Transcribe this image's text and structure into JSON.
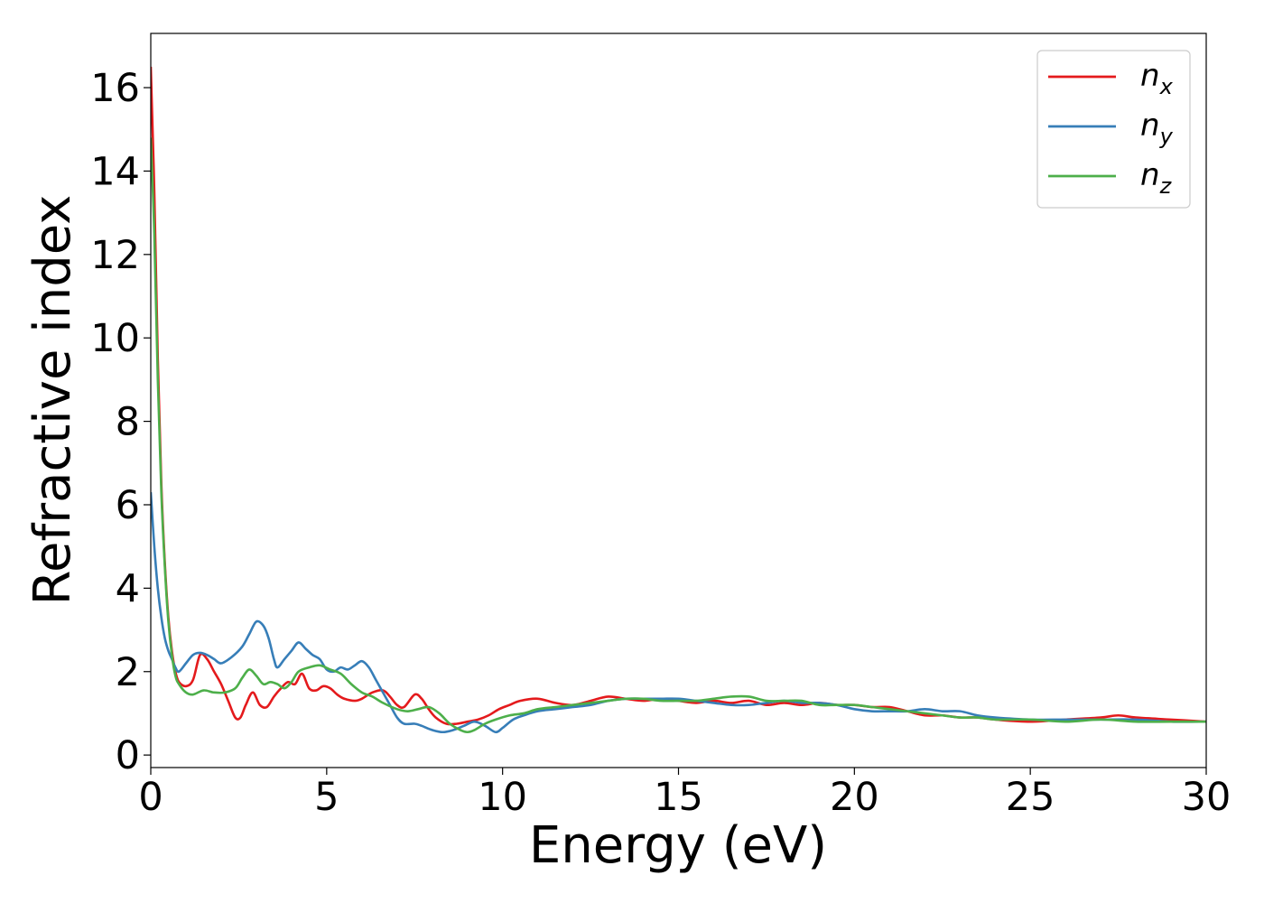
{
  "chart_data": {
    "type": "line",
    "title": "",
    "xlabel": "Energy (eV)",
    "ylabel": "Refractive index",
    "xlim": [
      0,
      30
    ],
    "ylim": [
      -0.3,
      17.3
    ],
    "xticks": [
      0,
      5,
      10,
      15,
      20,
      25,
      30
    ],
    "yticks": [
      0,
      2,
      4,
      6,
      8,
      10,
      12,
      14,
      16
    ],
    "grid": false,
    "legend_position": "top-right",
    "series": [
      {
        "name": "n_x",
        "label_base": "n",
        "label_sub": "x",
        "color": "#e41a1c",
        "points": [
          [
            0,
            16.5
          ],
          [
            0.1,
            13.5
          ],
          [
            0.2,
            9.5
          ],
          [
            0.3,
            6.5
          ],
          [
            0.4,
            4.6
          ],
          [
            0.5,
            3.3
          ],
          [
            0.6,
            2.5
          ],
          [
            0.7,
            2.0
          ],
          [
            0.8,
            1.75
          ],
          [
            1.0,
            1.65
          ],
          [
            1.2,
            1.8
          ],
          [
            1.4,
            2.4
          ],
          [
            1.6,
            2.3
          ],
          [
            1.8,
            2.0
          ],
          [
            2.0,
            1.7
          ],
          [
            2.2,
            1.3
          ],
          [
            2.4,
            0.9
          ],
          [
            2.55,
            0.9
          ],
          [
            2.7,
            1.2
          ],
          [
            2.9,
            1.5
          ],
          [
            3.1,
            1.2
          ],
          [
            3.3,
            1.15
          ],
          [
            3.5,
            1.4
          ],
          [
            3.7,
            1.6
          ],
          [
            3.9,
            1.75
          ],
          [
            4.1,
            1.7
          ],
          [
            4.3,
            1.95
          ],
          [
            4.5,
            1.6
          ],
          [
            4.7,
            1.55
          ],
          [
            4.9,
            1.65
          ],
          [
            5.1,
            1.6
          ],
          [
            5.3,
            1.45
          ],
          [
            5.5,
            1.35
          ],
          [
            5.8,
            1.3
          ],
          [
            6.0,
            1.35
          ],
          [
            6.3,
            1.5
          ],
          [
            6.6,
            1.55
          ],
          [
            6.8,
            1.4
          ],
          [
            7.0,
            1.2
          ],
          [
            7.2,
            1.15
          ],
          [
            7.5,
            1.45
          ],
          [
            7.7,
            1.35
          ],
          [
            7.9,
            1.1
          ],
          [
            8.1,
            0.9
          ],
          [
            8.4,
            0.75
          ],
          [
            8.7,
            0.75
          ],
          [
            9.0,
            0.8
          ],
          [
            9.3,
            0.85
          ],
          [
            9.6,
            0.95
          ],
          [
            9.9,
            1.1
          ],
          [
            10.2,
            1.2
          ],
          [
            10.5,
            1.3
          ],
          [
            11.0,
            1.35
          ],
          [
            11.5,
            1.25
          ],
          [
            12.0,
            1.2
          ],
          [
            12.5,
            1.3
          ],
          [
            13.0,
            1.4
          ],
          [
            13.5,
            1.35
          ],
          [
            14.0,
            1.3
          ],
          [
            14.5,
            1.35
          ],
          [
            15.0,
            1.3
          ],
          [
            15.5,
            1.25
          ],
          [
            16.0,
            1.3
          ],
          [
            16.5,
            1.25
          ],
          [
            17.0,
            1.3
          ],
          [
            17.5,
            1.2
          ],
          [
            18.0,
            1.25
          ],
          [
            18.5,
            1.2
          ],
          [
            19.0,
            1.25
          ],
          [
            19.5,
            1.2
          ],
          [
            20.0,
            1.2
          ],
          [
            20.5,
            1.15
          ],
          [
            21.0,
            1.15
          ],
          [
            21.5,
            1.05
          ],
          [
            22.0,
            0.95
          ],
          [
            22.5,
            0.95
          ],
          [
            23.0,
            0.9
          ],
          [
            23.5,
            0.9
          ],
          [
            24.0,
            0.85
          ],
          [
            25.0,
            0.8
          ],
          [
            26.0,
            0.85
          ],
          [
            27.0,
            0.9
          ],
          [
            27.5,
            0.95
          ],
          [
            28.0,
            0.9
          ],
          [
            29.0,
            0.85
          ],
          [
            30.0,
            0.8
          ]
        ]
      },
      {
        "name": "n_y",
        "label_base": "n",
        "label_sub": "y",
        "color": "#377eb8",
        "points": [
          [
            0,
            6.3
          ],
          [
            0.1,
            5.0
          ],
          [
            0.2,
            4.0
          ],
          [
            0.3,
            3.3
          ],
          [
            0.4,
            2.8
          ],
          [
            0.5,
            2.5
          ],
          [
            0.6,
            2.3
          ],
          [
            0.7,
            2.1
          ],
          [
            0.8,
            2.0
          ],
          [
            1.0,
            2.2
          ],
          [
            1.2,
            2.4
          ],
          [
            1.4,
            2.45
          ],
          [
            1.6,
            2.4
          ],
          [
            1.8,
            2.3
          ],
          [
            2.0,
            2.2
          ],
          [
            2.3,
            2.35
          ],
          [
            2.6,
            2.6
          ],
          [
            2.8,
            2.9
          ],
          [
            3.0,
            3.2
          ],
          [
            3.2,
            3.1
          ],
          [
            3.35,
            2.8
          ],
          [
            3.5,
            2.3
          ],
          [
            3.6,
            2.1
          ],
          [
            3.8,
            2.3
          ],
          [
            4.0,
            2.5
          ],
          [
            4.2,
            2.7
          ],
          [
            4.4,
            2.55
          ],
          [
            4.6,
            2.4
          ],
          [
            4.8,
            2.3
          ],
          [
            5.0,
            2.05
          ],
          [
            5.2,
            2.0
          ],
          [
            5.4,
            2.1
          ],
          [
            5.6,
            2.05
          ],
          [
            5.8,
            2.15
          ],
          [
            6.0,
            2.25
          ],
          [
            6.2,
            2.1
          ],
          [
            6.4,
            1.8
          ],
          [
            6.6,
            1.5
          ],
          [
            6.8,
            1.2
          ],
          [
            7.0,
            0.9
          ],
          [
            7.2,
            0.75
          ],
          [
            7.5,
            0.75
          ],
          [
            7.7,
            0.7
          ],
          [
            8.0,
            0.6
          ],
          [
            8.3,
            0.55
          ],
          [
            8.6,
            0.6
          ],
          [
            8.9,
            0.7
          ],
          [
            9.2,
            0.8
          ],
          [
            9.5,
            0.7
          ],
          [
            9.8,
            0.55
          ],
          [
            10.0,
            0.65
          ],
          [
            10.3,
            0.85
          ],
          [
            10.6,
            0.95
          ],
          [
            11.0,
            1.05
          ],
          [
            11.5,
            1.1
          ],
          [
            12.0,
            1.15
          ],
          [
            12.5,
            1.2
          ],
          [
            13.0,
            1.3
          ],
          [
            13.5,
            1.35
          ],
          [
            14.0,
            1.35
          ],
          [
            14.5,
            1.35
          ],
          [
            15.0,
            1.35
          ],
          [
            15.5,
            1.3
          ],
          [
            16.0,
            1.25
          ],
          [
            16.5,
            1.2
          ],
          [
            17.0,
            1.2
          ],
          [
            17.5,
            1.25
          ],
          [
            18.0,
            1.3
          ],
          [
            18.5,
            1.25
          ],
          [
            19.0,
            1.25
          ],
          [
            19.5,
            1.2
          ],
          [
            20.0,
            1.1
          ],
          [
            20.5,
            1.05
          ],
          [
            21.0,
            1.05
          ],
          [
            21.5,
            1.05
          ],
          [
            22.0,
            1.1
          ],
          [
            22.5,
            1.05
          ],
          [
            23.0,
            1.05
          ],
          [
            23.5,
            0.95
          ],
          [
            24.0,
            0.9
          ],
          [
            25.0,
            0.85
          ],
          [
            26.0,
            0.85
          ],
          [
            27.0,
            0.85
          ],
          [
            28.0,
            0.85
          ],
          [
            29.0,
            0.8
          ],
          [
            30.0,
            0.8
          ]
        ]
      },
      {
        "name": "n_z",
        "label_base": "n",
        "label_sub": "z",
        "color": "#4daf4a",
        "points": [
          [
            0,
            14.8
          ],
          [
            0.1,
            12.5
          ],
          [
            0.2,
            9.0
          ],
          [
            0.3,
            6.3
          ],
          [
            0.4,
            4.5
          ],
          [
            0.5,
            3.2
          ],
          [
            0.6,
            2.4
          ],
          [
            0.7,
            1.9
          ],
          [
            0.8,
            1.7
          ],
          [
            1.0,
            1.5
          ],
          [
            1.2,
            1.45
          ],
          [
            1.5,
            1.55
          ],
          [
            1.8,
            1.5
          ],
          [
            2.1,
            1.5
          ],
          [
            2.4,
            1.6
          ],
          [
            2.6,
            1.85
          ],
          [
            2.8,
            2.05
          ],
          [
            3.0,
            1.9
          ],
          [
            3.2,
            1.7
          ],
          [
            3.4,
            1.75
          ],
          [
            3.6,
            1.7
          ],
          [
            3.8,
            1.6
          ],
          [
            4.0,
            1.75
          ],
          [
            4.2,
            2.0
          ],
          [
            4.5,
            2.1
          ],
          [
            4.8,
            2.15
          ],
          [
            5.1,
            2.05
          ],
          [
            5.4,
            1.95
          ],
          [
            5.7,
            1.7
          ],
          [
            6.0,
            1.5
          ],
          [
            6.3,
            1.4
          ],
          [
            6.6,
            1.25
          ],
          [
            7.0,
            1.1
          ],
          [
            7.3,
            1.05
          ],
          [
            7.6,
            1.1
          ],
          [
            7.9,
            1.15
          ],
          [
            8.2,
            1.0
          ],
          [
            8.5,
            0.75
          ],
          [
            8.8,
            0.6
          ],
          [
            9.0,
            0.55
          ],
          [
            9.2,
            0.6
          ],
          [
            9.5,
            0.75
          ],
          [
            9.8,
            0.85
          ],
          [
            10.2,
            0.95
          ],
          [
            10.6,
            1.0
          ],
          [
            11.0,
            1.1
          ],
          [
            11.5,
            1.15
          ],
          [
            12.0,
            1.2
          ],
          [
            12.5,
            1.25
          ],
          [
            13.0,
            1.3
          ],
          [
            13.5,
            1.35
          ],
          [
            14.0,
            1.35
          ],
          [
            14.5,
            1.3
          ],
          [
            15.0,
            1.3
          ],
          [
            15.5,
            1.3
          ],
          [
            16.0,
            1.35
          ],
          [
            16.5,
            1.4
          ],
          [
            17.0,
            1.4
          ],
          [
            17.5,
            1.3
          ],
          [
            18.0,
            1.3
          ],
          [
            18.5,
            1.3
          ],
          [
            19.0,
            1.2
          ],
          [
            19.5,
            1.2
          ],
          [
            20.0,
            1.2
          ],
          [
            20.5,
            1.15
          ],
          [
            21.0,
            1.1
          ],
          [
            21.5,
            1.05
          ],
          [
            22.0,
            1.0
          ],
          [
            22.5,
            0.95
          ],
          [
            23.0,
            0.9
          ],
          [
            23.5,
            0.9
          ],
          [
            24.0,
            0.85
          ],
          [
            25.0,
            0.85
          ],
          [
            26.0,
            0.8
          ],
          [
            27.0,
            0.85
          ],
          [
            28.0,
            0.8
          ],
          [
            29.0,
            0.8
          ],
          [
            30.0,
            0.8
          ]
        ]
      }
    ]
  }
}
